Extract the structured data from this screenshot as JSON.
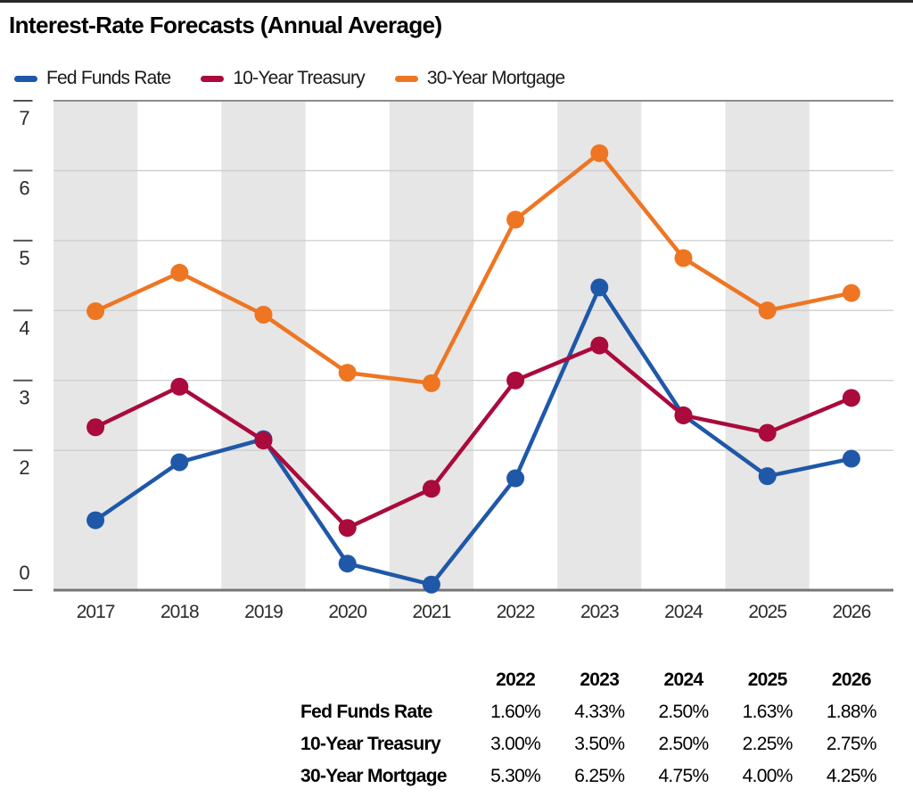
{
  "chart_data": {
    "type": "line",
    "title": "Interest-Rate Forecasts (Annual Average)",
    "categories": [
      "2017",
      "2018",
      "2019",
      "2020",
      "2021",
      "2022",
      "2023",
      "2024",
      "2025",
      "2026"
    ],
    "series": [
      {
        "name": "Fed Funds Rate",
        "color": "#1F58A8",
        "values": [
          1.0,
          1.83,
          2.16,
          0.38,
          0.08,
          1.6,
          4.33,
          2.5,
          1.63,
          1.88
        ]
      },
      {
        "name": "10-Year Treasury",
        "color": "#AA0A3C",
        "values": [
          2.33,
          2.91,
          2.14,
          0.89,
          1.45,
          3.0,
          3.5,
          2.5,
          2.25,
          2.75
        ]
      },
      {
        "name": "30-Year Mortgage",
        "color": "#EE7623",
        "values": [
          3.99,
          4.54,
          3.94,
          3.11,
          2.96,
          5.3,
          6.25,
          4.75,
          4.0,
          4.25
        ]
      }
    ],
    "units": "percent",
    "ylim": [
      0,
      7
    ],
    "yticks": [
      7,
      6,
      5,
      4,
      3,
      2,
      0
    ],
    "grid": true,
    "legend_position": "top",
    "shading": "alternate-year-bands",
    "band_color": "#E6E6E6"
  },
  "table": {
    "columns": [
      "2022",
      "2023",
      "2024",
      "2025",
      "2026"
    ],
    "rows": [
      {
        "label": "Fed Funds Rate",
        "values": [
          "1.60%",
          "4.33%",
          "2.50%",
          "1.63%",
          "1.88%"
        ]
      },
      {
        "label": "10-Year Treasury",
        "values": [
          "3.00%",
          "3.50%",
          "2.50%",
          "2.25%",
          "2.75%"
        ]
      },
      {
        "label": "30-Year Mortgage",
        "values": [
          "5.30%",
          "6.25%",
          "4.75%",
          "4.00%",
          "4.25%"
        ]
      }
    ]
  }
}
